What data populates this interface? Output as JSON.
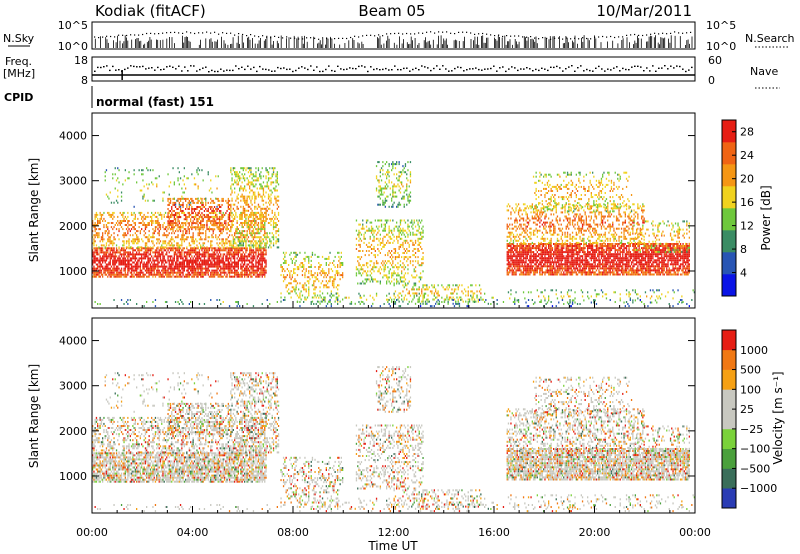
{
  "header": {
    "station": "Kodiak (fitACF)",
    "beam": "Beam 05",
    "date": "10/Mar/2011"
  },
  "noise_panel": {
    "left_label": "N.Sky",
    "right_label": "N.Search",
    "left_ticks": [
      "10^5",
      "10^0"
    ],
    "right_ticks": [
      "10^5",
      "10^0"
    ]
  },
  "freq_panel": {
    "left_label_1": "Freq.",
    "left_label_2": "[MHz]",
    "right_label": "Nave",
    "left_ticks": [
      "18",
      "8"
    ],
    "right_ticks": [
      "60",
      "0"
    ]
  },
  "cpid_panel": {
    "label": "CPID",
    "value": "normal (fast) 151"
  },
  "chart_data": [
    {
      "type": "heatmap",
      "title": "Power",
      "xlabel": "Time UT",
      "ylabel": "Slant Range [km]",
      "x_ticks": [
        "00:00",
        "04:00",
        "08:00",
        "12:00",
        "16:00",
        "20:00",
        "00:00"
      ],
      "xlim": [
        0,
        24
      ],
      "ylim": [
        180,
        4500
      ],
      "y_ticks": [
        1000,
        2000,
        3000,
        4000
      ],
      "colorbar": {
        "label": "Power [dB]",
        "ticks": [
          "4",
          "8",
          "12",
          "16",
          "20",
          "24",
          "28"
        ],
        "range": [
          0,
          30
        ],
        "colors": [
          "#0a14e6",
          "#2855b4",
          "#3a8c64",
          "#6ec83c",
          "#f0d21e",
          "#f59614",
          "#f06414",
          "#e61e14"
        ]
      }
    },
    {
      "type": "heatmap",
      "title": "Velocity",
      "xlabel": "Time UT",
      "ylabel": "Slant Range [km]",
      "x_ticks": [
        "00:00",
        "04:00",
        "08:00",
        "12:00",
        "16:00",
        "20:00",
        "00:00"
      ],
      "xlim": [
        0,
        24
      ],
      "ylim": [
        180,
        4500
      ],
      "y_ticks": [
        1000,
        2000,
        3000,
        4000
      ],
      "colorbar": {
        "label": "Velocity [m s⁻¹]",
        "ticks": [
          "1000",
          "500",
          "100",
          "25",
          "−25",
          "−100",
          "−500",
          "−1000"
        ],
        "colors": [
          "#2a3cb4",
          "#3a6e5a",
          "#4aa03c",
          "#7ad23a",
          "#c8c8c0",
          "#c8c8c0",
          "#f5a014",
          "#f07814",
          "#e61e14"
        ]
      }
    }
  ],
  "axis": {
    "xlabel": "Time UT",
    "ylabel": "Slant Range [km]"
  }
}
